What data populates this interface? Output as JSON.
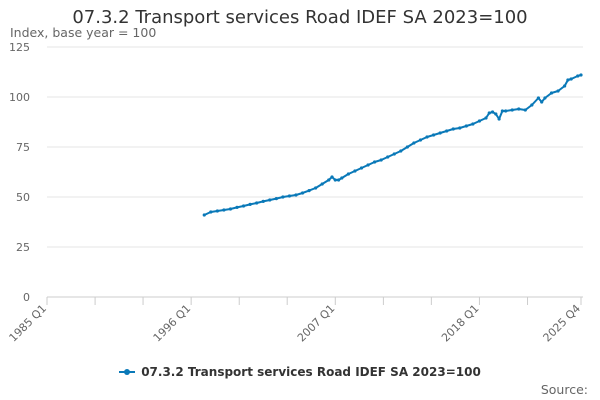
{
  "chart_data": {
    "type": "line",
    "title": "07.3.2 Transport services Road IDEF SA 2023=100",
    "subtitle": "Index, base year = 100",
    "xlabel": "",
    "ylabel": "Index, base year = 100",
    "ylim": [
      0,
      125
    ],
    "yticks": [
      0,
      25,
      50,
      75,
      100,
      125
    ],
    "xlim": [
      1985,
      2026
    ],
    "xtick_labels": [
      "1985 Q1",
      "1996 Q1",
      "2007 Q1",
      "2018 Q1",
      "2025 Q4"
    ],
    "xtick_values": [
      1985,
      1996,
      2007,
      2018,
      2025.75
    ],
    "minor_ticks": [
      1985,
      1988.67,
      1992.33,
      1996,
      1999.67,
      2003.33,
      2007,
      2010.67,
      2014.33,
      2018,
      2021.67,
      2025.75
    ],
    "grid": true,
    "legend_position": "bottom",
    "series": [
      {
        "name": "07.3.2 Transport services Road IDEF SA 2023=100",
        "color": "#0a79b8",
        "points": [
          [
            1997.0,
            41.0
          ],
          [
            1997.5,
            42.5
          ],
          [
            1998.0,
            43.0
          ],
          [
            1998.5,
            43.5
          ],
          [
            1999.0,
            44.0
          ],
          [
            1999.5,
            44.8
          ],
          [
            2000.0,
            45.5
          ],
          [
            2000.5,
            46.3
          ],
          [
            2001.0,
            47.0
          ],
          [
            2001.5,
            47.8
          ],
          [
            2002.0,
            48.5
          ],
          [
            2002.5,
            49.2
          ],
          [
            2003.0,
            50.0
          ],
          [
            2003.5,
            50.5
          ],
          [
            2004.0,
            51.0
          ],
          [
            2004.5,
            52.0
          ],
          [
            2005.0,
            53.2
          ],
          [
            2005.5,
            54.5
          ],
          [
            2006.0,
            56.5
          ],
          [
            2006.5,
            58.5
          ],
          [
            2006.75,
            60.0
          ],
          [
            2007.0,
            58.5
          ],
          [
            2007.25,
            58.5
          ],
          [
            2007.5,
            59.5
          ],
          [
            2008.0,
            61.5
          ],
          [
            2008.5,
            63.0
          ],
          [
            2009.0,
            64.5
          ],
          [
            2009.5,
            66.0
          ],
          [
            2010.0,
            67.5
          ],
          [
            2010.5,
            68.5
          ],
          [
            2011.0,
            70.0
          ],
          [
            2011.5,
            71.5
          ],
          [
            2012.0,
            73.0
          ],
          [
            2012.5,
            75.0
          ],
          [
            2013.0,
            77.0
          ],
          [
            2013.5,
            78.5
          ],
          [
            2014.0,
            80.0
          ],
          [
            2014.5,
            81.0
          ],
          [
            2015.0,
            82.0
          ],
          [
            2015.5,
            83.0
          ],
          [
            2016.0,
            84.0
          ],
          [
            2016.5,
            84.5
          ],
          [
            2017.0,
            85.5
          ],
          [
            2017.5,
            86.5
          ],
          [
            2018.0,
            88.0
          ],
          [
            2018.5,
            89.5
          ],
          [
            2018.75,
            92.0
          ],
          [
            2019.0,
            92.5
          ],
          [
            2019.25,
            91.5
          ],
          [
            2019.5,
            89.0
          ],
          [
            2019.75,
            93.0
          ],
          [
            2020.0,
            93.0
          ],
          [
            2020.5,
            93.5
          ],
          [
            2021.0,
            94.0
          ],
          [
            2021.5,
            93.5
          ],
          [
            2022.0,
            96.0
          ],
          [
            2022.5,
            99.5
          ],
          [
            2022.75,
            97.5
          ],
          [
            2023.0,
            99.5
          ],
          [
            2023.5,
            102.0
          ],
          [
            2024.0,
            103.0
          ],
          [
            2024.5,
            105.5
          ],
          [
            2024.75,
            108.5
          ],
          [
            2025.0,
            109.0
          ],
          [
            2025.5,
            110.5
          ],
          [
            2025.75,
            111.0
          ]
        ]
      }
    ],
    "source_label": "Source:"
  }
}
